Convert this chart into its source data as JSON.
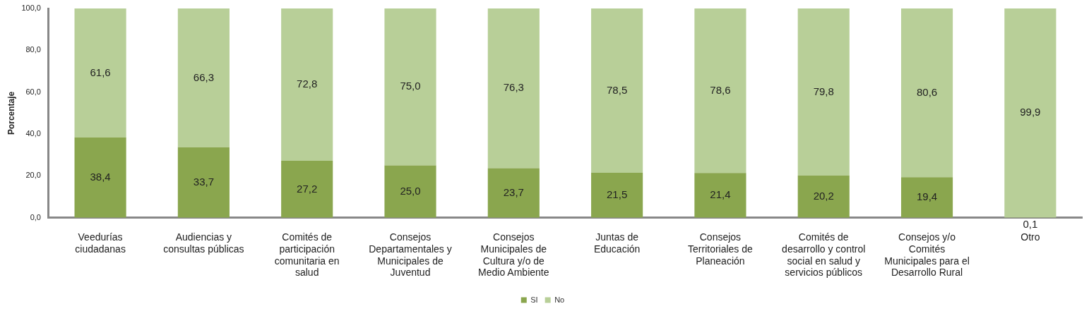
{
  "chart_data": {
    "type": "bar",
    "stacked": true,
    "ylabel": "Porcentaje",
    "categories": [
      "Veedurías ciudadanas",
      "Audiencias y consultas públicas",
      "Comités de participación comunitaria en salud",
      "Consejos Departamentales y Municipales de Juventud",
      "Consejos Municipales de Cultura y/o de Medio Ambiente",
      "Juntas de Educación",
      "Consejos Territoriales de Planeación",
      "Comités de desarrollo y control social en salud y servicios públicos",
      "Consejos y/o Comités Municipales para el Desarrollo Rural",
      "Otro"
    ],
    "series": [
      {
        "name": "SI",
        "color": "#8aa64e",
        "values": [
          38.4,
          33.7,
          27.2,
          25.0,
          23.7,
          21.5,
          21.4,
          20.2,
          19.4,
          0.1
        ],
        "value_labels": [
          "38,4",
          "33,7",
          "27,2",
          "25,0",
          "23,7",
          "21,5",
          "21,4",
          "20,2",
          "19,4",
          "0,1"
        ]
      },
      {
        "name": "No",
        "color": "#b8cf98",
        "values": [
          61.6,
          66.3,
          72.8,
          75.0,
          76.3,
          78.5,
          78.6,
          79.8,
          80.6,
          99.9
        ],
        "value_labels": [
          "61,6",
          "66,3",
          "72,8",
          "75,0",
          "76,3",
          "78,5",
          "78,6",
          "79,8",
          "80,6",
          "99,9"
        ]
      }
    ],
    "ylim": [
      0,
      100
    ],
    "yticks": [
      {
        "value": 0,
        "label": "0,0"
      },
      {
        "value": 20,
        "label": "20,0"
      },
      {
        "value": 40,
        "label": "40,0"
      },
      {
        "value": 60,
        "label": "60,0"
      },
      {
        "value": 80,
        "label": "80,0"
      },
      {
        "value": 100,
        "label": "100,0"
      }
    ],
    "grid": false,
    "legend": "bottom"
  }
}
